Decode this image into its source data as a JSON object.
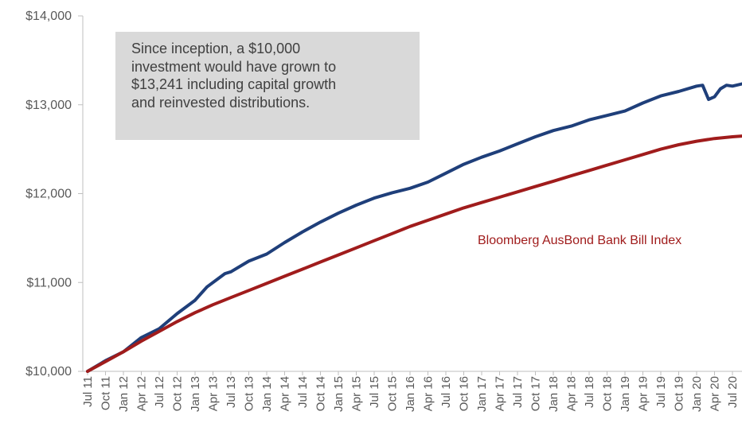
{
  "chart_data": {
    "type": "line",
    "title": "",
    "xlabel": "",
    "ylabel": "",
    "ylim": [
      10000,
      14000
    ],
    "y_ticks": [
      10000,
      11000,
      12000,
      13000,
      14000
    ],
    "y_tick_labels": [
      "$10,000",
      "$11,000",
      "$12,000",
      "$13,000",
      "$14,000"
    ],
    "y_gridlines": false,
    "x_labels": [
      "Jul 11",
      "Oct 11",
      "Jan 12",
      "Apr 12",
      "Jul 12",
      "Oct 12",
      "Jan 13",
      "Apr 13",
      "Jul 13",
      "Oct 13",
      "Jan 14",
      "Apr 14",
      "Jul 14",
      "Oct 14",
      "Jan 15",
      "Apr 15",
      "Jul 15",
      "Oct 15",
      "Jan 16",
      "Apr 16",
      "Jul 16",
      "Oct 16",
      "Jan 17",
      "Apr 17",
      "Jul 17",
      "Oct 17",
      "Jan 18",
      "Apr 18",
      "Jul 18",
      "Oct 18",
      "Jan 19",
      "Apr 19",
      "Jul 19",
      "Oct 19",
      "Jan 20",
      "Apr 20",
      "Jul 20"
    ],
    "x_axis_quarters": 37,
    "series": [
      {
        "name": "",
        "color": "#1f3f7a",
        "points": [
          [
            "Jul 11",
            10000
          ],
          [
            "Oct 11",
            10120
          ],
          [
            "Jan 12",
            10220
          ],
          [
            "Apr 12",
            10380
          ],
          [
            "Jul 12",
            10480
          ],
          [
            "Oct 12",
            10650
          ],
          [
            "Jan 13",
            10800
          ],
          [
            "Mar 13",
            10950
          ],
          [
            "Jun 13",
            11100
          ],
          [
            "Jul 13",
            11120
          ],
          [
            "Oct 13",
            11240
          ],
          [
            "Jan 14",
            11320
          ],
          [
            "Apr 14",
            11450
          ],
          [
            "Jul 14",
            11570
          ],
          [
            "Oct 14",
            11680
          ],
          [
            "Jan 15",
            11780
          ],
          [
            "Apr 15",
            11870
          ],
          [
            "Jul 15",
            11950
          ],
          [
            "Oct 15",
            12010
          ],
          [
            "Jan 16",
            12060
          ],
          [
            "Apr 16",
            12130
          ],
          [
            "Jul 16",
            12230
          ],
          [
            "Oct 16",
            12330
          ],
          [
            "Jan 17",
            12410
          ],
          [
            "Apr 17",
            12480
          ],
          [
            "Jul 17",
            12560
          ],
          [
            "Oct 17",
            12640
          ],
          [
            "Jan 18",
            12710
          ],
          [
            "Apr 18",
            12760
          ],
          [
            "Jul 18",
            12830
          ],
          [
            "Oct 18",
            12880
          ],
          [
            "Jan 19",
            12930
          ],
          [
            "Apr 19",
            13020
          ],
          [
            "Jul 19",
            13100
          ],
          [
            "Oct 19",
            13150
          ],
          [
            "Jan 20",
            13210
          ],
          [
            "Feb 20",
            13220
          ],
          [
            "Mar 20",
            13060
          ],
          [
            "Apr 20",
            13090
          ],
          [
            "May 20",
            13180
          ],
          [
            "Jun 20",
            13220
          ],
          [
            "Jul 20",
            13210
          ],
          [
            "Sep 20",
            13241
          ]
        ]
      },
      {
        "name": "Bloomberg AusBond Bank Bill Index",
        "color": "#a01c1c",
        "points": [
          [
            "Jul 11",
            10000
          ],
          [
            "Oct 11",
            10110
          ],
          [
            "Jan 12",
            10220
          ],
          [
            "Apr 12",
            10340
          ],
          [
            "Jul 12",
            10450
          ],
          [
            "Oct 12",
            10560
          ],
          [
            "Jan 13",
            10660
          ],
          [
            "Apr 13",
            10750
          ],
          [
            "Jul 13",
            10830
          ],
          [
            "Oct 13",
            10910
          ],
          [
            "Jan 14",
            10990
          ],
          [
            "Apr 14",
            11070
          ],
          [
            "Jul 14",
            11150
          ],
          [
            "Oct 14",
            11230
          ],
          [
            "Jan 15",
            11310
          ],
          [
            "Apr 15",
            11390
          ],
          [
            "Jul 15",
            11470
          ],
          [
            "Oct 15",
            11550
          ],
          [
            "Jan 16",
            11630
          ],
          [
            "Apr 16",
            11700
          ],
          [
            "Jul 16",
            11770
          ],
          [
            "Oct 16",
            11840
          ],
          [
            "Jan 17",
            11900
          ],
          [
            "Apr 17",
            11960
          ],
          [
            "Jul 17",
            12020
          ],
          [
            "Oct 17",
            12080
          ],
          [
            "Jan 18",
            12140
          ],
          [
            "Apr 18",
            12200
          ],
          [
            "Jul 18",
            12260
          ],
          [
            "Oct 18",
            12320
          ],
          [
            "Jan 19",
            12380
          ],
          [
            "Apr 19",
            12440
          ],
          [
            "Jul 19",
            12500
          ],
          [
            "Oct 19",
            12550
          ],
          [
            "Jan 20",
            12590
          ],
          [
            "Apr 20",
            12620
          ],
          [
            "Jul 20",
            12640
          ],
          [
            "Sep 20",
            12650
          ]
        ]
      }
    ],
    "annotations": [
      {
        "id": "note",
        "lines": [
          "Since inception, a $10,000",
          "investment would have grown to",
          "$13,241 including capital growth",
          "and reinvested distributions."
        ]
      }
    ]
  }
}
